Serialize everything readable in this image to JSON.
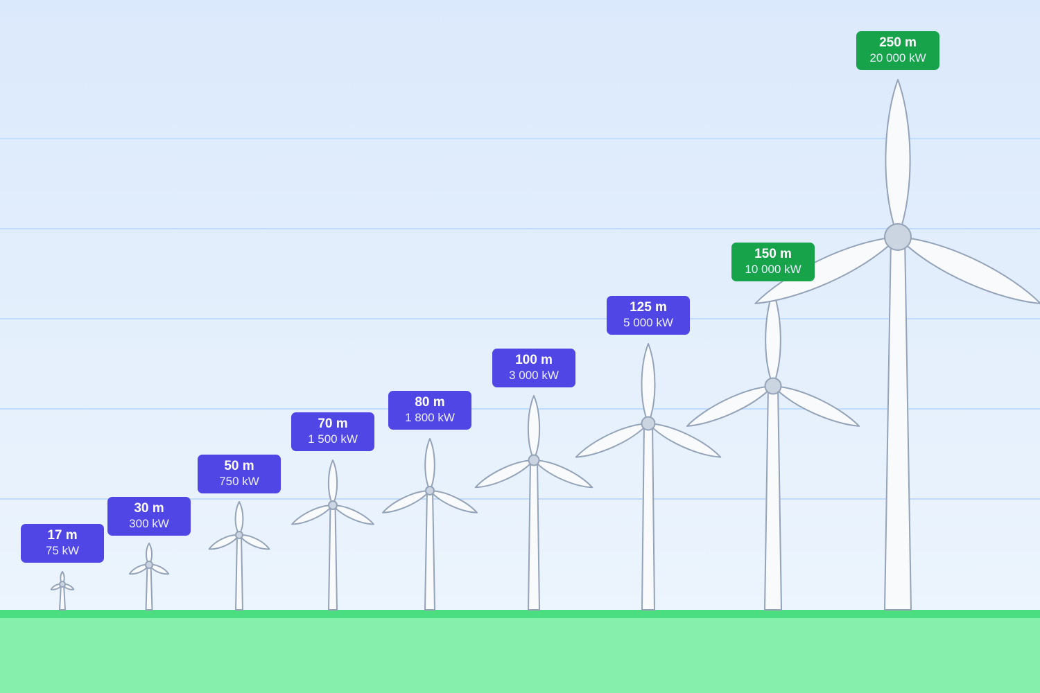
{
  "turbines": [
    {
      "height": "17 m",
      "power": "75 kW",
      "highlight": false
    },
    {
      "height": "30 m",
      "power": "300 kW",
      "highlight": false
    },
    {
      "height": "50 m",
      "power": "750 kW",
      "highlight": false
    },
    {
      "height": "70 m",
      "power": "1 500 kW",
      "highlight": false
    },
    {
      "height": "80 m",
      "power": "1 800 kW",
      "highlight": false
    },
    {
      "height": "100 m",
      "power": "3 000 kW",
      "highlight": false
    },
    {
      "height": "125 m",
      "power": "5 000 kW",
      "highlight": false
    },
    {
      "height": "150 m",
      "power": "10 000 kW",
      "highlight": true
    },
    {
      "height": "250 m",
      "power": "20 000 kW",
      "highlight": true
    }
  ],
  "colors": {
    "sky_top": "#dbe9fc",
    "sky_bottom": "#eef6fd",
    "ground": "#86efac",
    "ground_edge": "#4ade80",
    "label_standard": "#4f46e5",
    "label_highlight": "#16a34a",
    "turbine_fill": "#f8fafc",
    "turbine_stroke": "#94a3b8",
    "gridline": "#bfdbfe"
  }
}
